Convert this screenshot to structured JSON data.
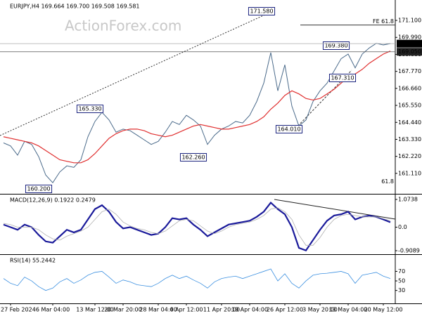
{
  "chart_data": [
    {
      "type": "line",
      "title": "EURJPY,H4  169.664 169.700 169.508 169.581",
      "watermark": "ActionForex.com",
      "categories": [
        null,
        "27 Feb 2024",
        null,
        null,
        null,
        null,
        null,
        "6 Mar 04:00",
        null,
        null,
        null,
        null,
        null,
        "13 Mar 12:00",
        null,
        null,
        null,
        "20 Mar 20:00",
        null,
        null,
        null,
        null,
        "28 Mar 04:00",
        null,
        null,
        null,
        "4 Apr 12:00",
        null,
        null,
        null,
        null,
        "11 Apr 20:00",
        null,
        null,
        null,
        "19 Apr 04:00",
        null,
        null,
        null,
        null,
        "26 Apr 12:00",
        null,
        null,
        null,
        null,
        "3 May 20:00",
        null,
        null,
        null,
        "13 May 04:00",
        null,
        null,
        null,
        null,
        "20 May 12:00",
        null
      ],
      "series": [
        {
          "name": "EURJPY",
          "color": "#4a6a8a",
          "values": [
            163.1,
            162.9,
            162.3,
            163.2,
            163.0,
            162.2,
            161.0,
            160.5,
            161.2,
            161.6,
            161.5,
            162.0,
            163.5,
            164.5,
            165.1,
            164.6,
            163.8,
            164.0,
            163.9,
            163.6,
            163.3,
            163.0,
            163.2,
            163.8,
            164.5,
            164.3,
            164.9,
            164.6,
            164.2,
            163.0,
            163.6,
            164.0,
            164.2,
            164.5,
            164.4,
            164.9,
            165.8,
            167.0,
            169.0,
            166.5,
            168.2,
            165.5,
            164.2,
            164.6,
            165.8,
            166.5,
            167.0,
            167.8,
            168.6,
            168.9,
            168.0,
            168.9,
            169.3,
            169.6,
            169.5,
            169.58
          ]
        },
        {
          "name": "MA",
          "color": "#e03030",
          "values": [
            163.5,
            163.4,
            163.3,
            163.2,
            163.1,
            162.9,
            162.6,
            162.3,
            162.0,
            161.9,
            161.8,
            161.8,
            162.0,
            162.4,
            162.9,
            163.4,
            163.7,
            163.9,
            164.0,
            164.0,
            163.9,
            163.7,
            163.6,
            163.5,
            163.6,
            163.8,
            164.0,
            164.2,
            164.3,
            164.2,
            164.1,
            164.0,
            164.0,
            164.1,
            164.2,
            164.3,
            164.5,
            164.8,
            165.3,
            165.7,
            166.2,
            166.5,
            166.3,
            166.0,
            165.9,
            166.0,
            166.3,
            166.6,
            167.0,
            167.4,
            167.6,
            167.9,
            168.3,
            168.6,
            168.9,
            169.1
          ]
        }
      ],
      "ylim": [
        159.82,
        172.34
      ],
      "yticks": [
        {
          "value": 171.1,
          "label": "171.100"
        },
        {
          "value": 169.99,
          "label": "169.990"
        },
        {
          "value": 168.88,
          "label": "168.880"
        },
        {
          "value": 167.77,
          "label": "167.770"
        },
        {
          "value": 166.66,
          "label": "166.660"
        },
        {
          "value": 165.55,
          "label": "165.550"
        },
        {
          "value": 164.44,
          "label": "164.440"
        },
        {
          "value": 163.33,
          "label": "163.330"
        },
        {
          "value": 162.22,
          "label": "162.220"
        },
        {
          "value": 161.11,
          "label": "161.110"
        }
      ],
      "annotations": [
        "171.580",
        "165.330",
        "160.200",
        "162.260",
        "164.010",
        "169.380",
        "167.310"
      ],
      "fib_levels": [
        {
          "value": 170.8,
          "label": "FE 61.8"
        },
        {
          "value": 160.35,
          "label": "61.8"
        }
      ],
      "price_labels": [
        {
          "value": 169.581,
          "label": "169.581"
        },
        {
          "value": 169.05,
          "label": "169.050"
        }
      ]
    },
    {
      "type": "line",
      "title": "MACD(12,26,9) 0.1922 0.2479",
      "series": [
        {
          "name": "MACD",
          "color": "#1a1a9a",
          "values": [
            0.1,
            0.0,
            -0.1,
            0.1,
            0.0,
            -0.3,
            -0.55,
            -0.6,
            -0.35,
            -0.1,
            -0.2,
            -0.1,
            0.3,
            0.7,
            0.85,
            0.6,
            0.2,
            -0.05,
            0.0,
            -0.1,
            -0.2,
            -0.3,
            -0.25,
            0.0,
            0.35,
            0.3,
            0.35,
            0.1,
            -0.1,
            -0.35,
            -0.2,
            -0.05,
            0.1,
            0.15,
            0.2,
            0.25,
            0.4,
            0.6,
            0.95,
            0.7,
            0.5,
            0.0,
            -0.8,
            -0.9,
            -0.5,
            -0.1,
            0.25,
            0.45,
            0.5,
            0.6,
            0.3,
            0.4,
            0.45,
            0.4,
            0.3,
            0.19
          ]
        },
        {
          "name": "Signal",
          "color": "#b0b0b0",
          "values": [
            0.15,
            0.1,
            0.0,
            0.0,
            0.0,
            -0.1,
            -0.3,
            -0.45,
            -0.5,
            -0.35,
            -0.25,
            -0.15,
            0.0,
            0.3,
            0.6,
            0.7,
            0.5,
            0.2,
            0.05,
            -0.05,
            -0.1,
            -0.2,
            -0.25,
            -0.15,
            0.05,
            0.25,
            0.3,
            0.25,
            0.05,
            -0.15,
            -0.25,
            -0.15,
            0.0,
            0.1,
            0.15,
            0.2,
            0.3,
            0.45,
            0.7,
            0.75,
            0.6,
            0.3,
            -0.3,
            -0.7,
            -0.7,
            -0.4,
            0.0,
            0.3,
            0.45,
            0.5,
            0.45,
            0.4,
            0.4,
            0.4,
            0.33,
            0.25
          ]
        }
      ],
      "ylim": [
        -1.045,
        1.237
      ],
      "yticks": [
        {
          "value": 1.0738,
          "label": "1.0738"
        },
        {
          "value": 0,
          "label": "0.0"
        },
        {
          "value": -0.9089,
          "label": "-0.9089"
        }
      ]
    },
    {
      "type": "line",
      "title": "RSI(14) 55.2442",
      "series": [
        {
          "name": "RSI",
          "color": "#3a8fe0",
          "values": [
            55,
            45,
            40,
            58,
            50,
            38,
            30,
            35,
            48,
            55,
            45,
            52,
            62,
            68,
            70,
            58,
            45,
            52,
            48,
            42,
            40,
            38,
            45,
            55,
            62,
            55,
            60,
            52,
            45,
            35,
            48,
            55,
            58,
            60,
            55,
            60,
            65,
            70,
            75,
            50,
            65,
            45,
            35,
            50,
            62,
            65,
            66,
            68,
            70,
            65,
            45,
            62,
            65,
            68,
            60,
            55
          ]
        }
      ],
      "ylim": [
        3,
        103
      ],
      "yticks": [
        70,
        50,
        30
      ]
    }
  ]
}
